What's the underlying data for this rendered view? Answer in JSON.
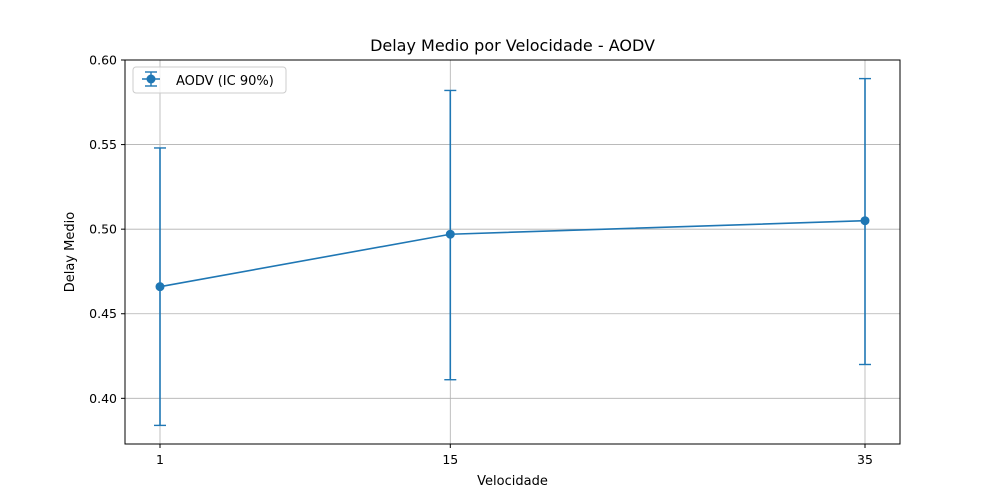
{
  "chart_data": {
    "type": "line",
    "title": "Delay Medio por Velocidade - AODV",
    "xlabel": "Velocidade",
    "ylabel": "Delay Medio",
    "categories": [
      "1",
      "15",
      "35"
    ],
    "x_ticks": [
      "1",
      "15",
      "35"
    ],
    "y_ticks": [
      "0.40",
      "0.45",
      "0.50",
      "0.55",
      "0.60"
    ],
    "ylim": [
      0.373,
      0.6
    ],
    "grid": true,
    "legend_position": "top-left",
    "series": [
      {
        "name": "AODV (IC 90%)",
        "color": "#1f77b4",
        "marker": "circle",
        "values": [
          0.466,
          0.497,
          0.505
        ],
        "error_lower": [
          0.384,
          0.411,
          0.42
        ],
        "error_upper": [
          0.548,
          0.582,
          0.589
        ]
      }
    ]
  }
}
